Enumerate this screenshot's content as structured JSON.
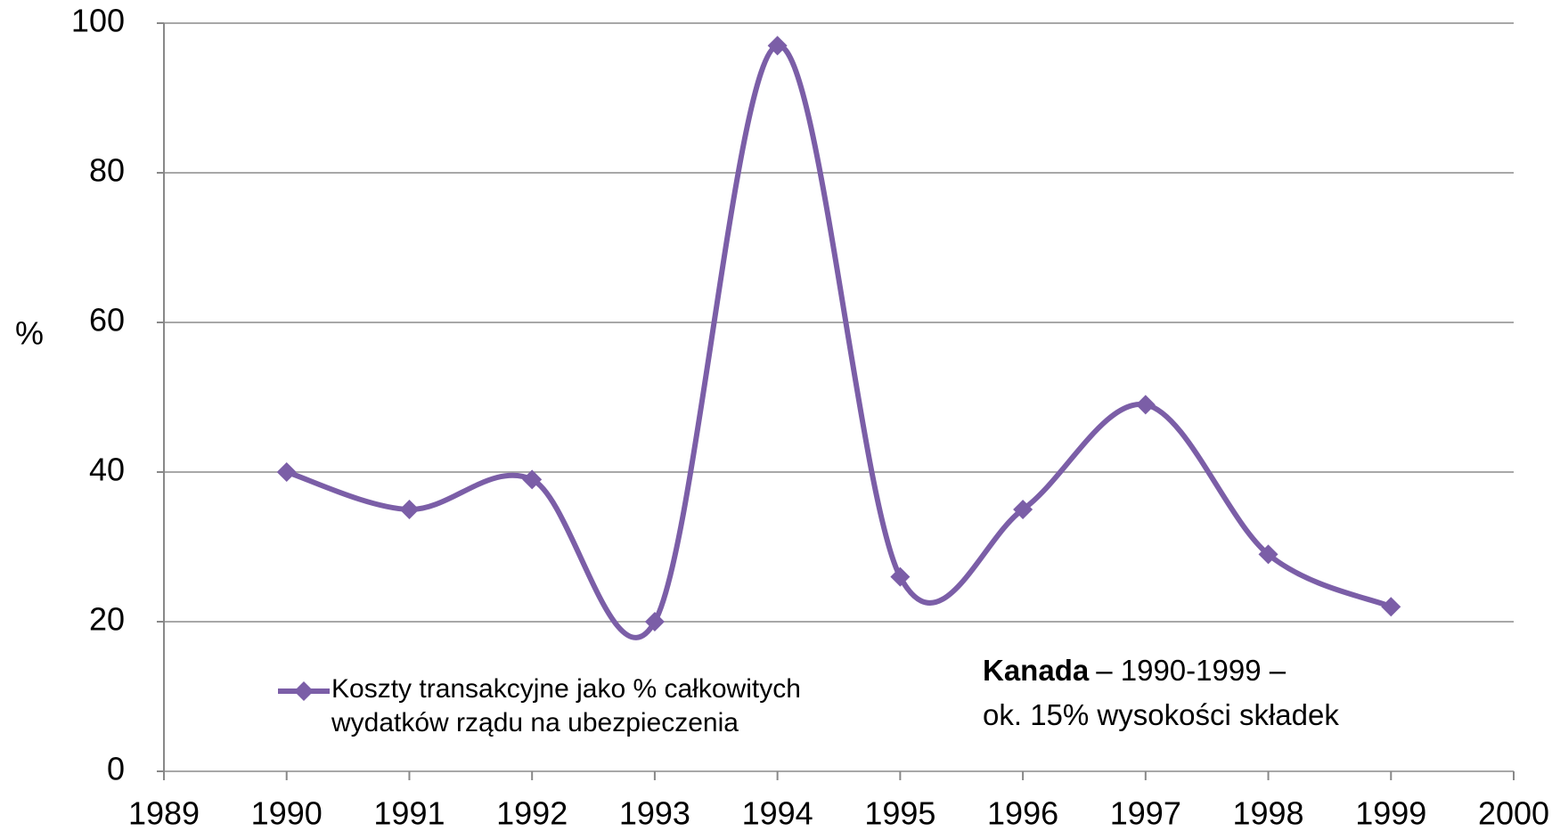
{
  "chart_data": {
    "type": "line",
    "y_label": "%",
    "x": [
      1990,
      1991,
      1992,
      1993,
      1994,
      1995,
      1996,
      1997,
      1998,
      1999
    ],
    "series": [
      {
        "name": "Koszty transakcyjne jako % całkowitych wydatków rządu na ubezpieczenia",
        "color": "#7b5ea7",
        "values": [
          40,
          35,
          39,
          20,
          97,
          26,
          35,
          49,
          29,
          22
        ]
      }
    ],
    "xlim": [
      1989,
      2000
    ],
    "xticks": [
      1989,
      1990,
      1991,
      1992,
      1993,
      1994,
      1995,
      1996,
      1997,
      1998,
      1999,
      2000
    ],
    "ylim": [
      0,
      100
    ],
    "yticks": [
      0,
      20,
      40,
      60,
      80,
      100
    ],
    "grid": true,
    "smooth": true,
    "annotation": {
      "bold": "Kanada",
      "line1": "– 1990-1999 –",
      "line2": "ok. 15% wysokości składek"
    }
  }
}
